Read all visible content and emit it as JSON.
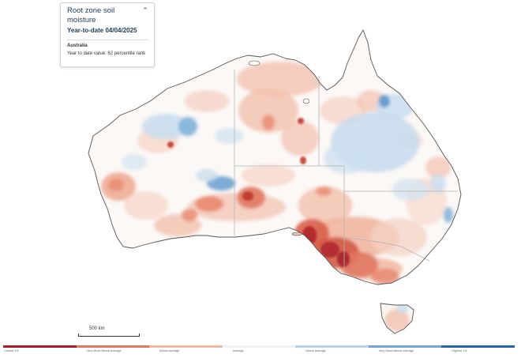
{
  "info_panel": {
    "title": "Root zone soil moisture",
    "subtitle": "Year-to-date 04/04/2025",
    "region": "Australia",
    "value_text": "Year to date value: 62 percentile rank",
    "collapse_icon": "chevron-up-icon"
  },
  "scale_bar": {
    "label": "500 km"
  },
  "legend": {
    "items": [
      {
        "label": "Lowest 1%",
        "color": "#b2182b"
      },
      {
        "label": "Very Much Below average",
        "color": "#e3785f"
      },
      {
        "label": "Below average",
        "color": "#f4b79e"
      },
      {
        "label": "Average",
        "color": "#f2f2f2"
      },
      {
        "label": "Above average",
        "color": "#b7d4ea"
      },
      {
        "label": "Very Much Above average",
        "color": "#6ea8d4"
      },
      {
        "label": "Highest 1%",
        "color": "#2166ac"
      }
    ]
  },
  "map": {
    "colors": {
      "land": "#fbf8f6",
      "coast": "#555555",
      "border": "#b5b5b5",
      "ocean": "#ffffff"
    }
  }
}
